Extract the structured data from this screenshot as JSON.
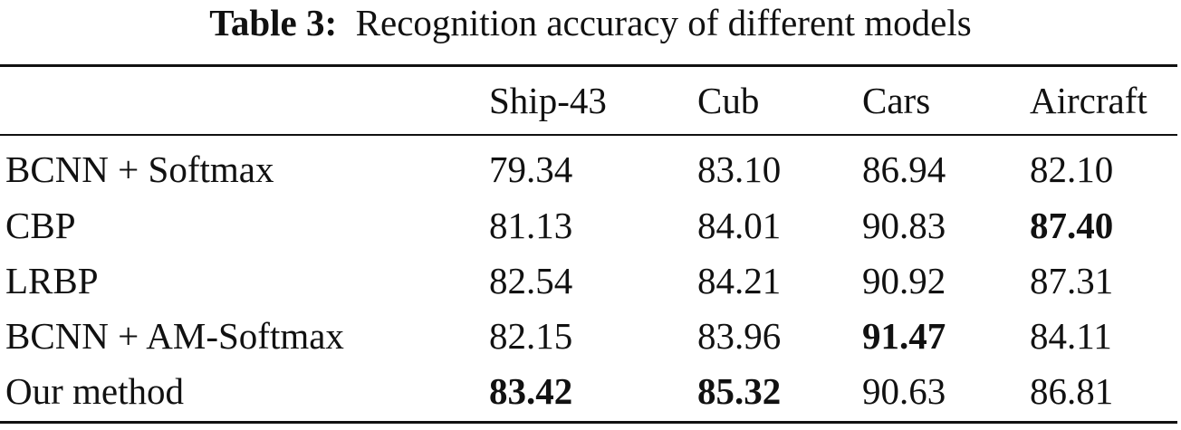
{
  "caption": {
    "label": "Table 3:",
    "text": "Recognition accuracy of different models"
  },
  "table": {
    "columns": [
      "",
      "Ship-43",
      "Cub",
      "Cars",
      "Aircraft"
    ],
    "rows": [
      {
        "model": "BCNN + Softmax",
        "values": [
          "79.34",
          "83.10",
          "86.94",
          "82.10"
        ],
        "bold": [
          false,
          false,
          false,
          false
        ]
      },
      {
        "model": "CBP",
        "values": [
          "81.13",
          "84.01",
          "90.83",
          "87.40"
        ],
        "bold": [
          false,
          false,
          false,
          true
        ]
      },
      {
        "model": "LRBP",
        "values": [
          "82.54",
          "84.21",
          "90.92",
          "87.31"
        ],
        "bold": [
          false,
          false,
          false,
          false
        ]
      },
      {
        "model": "BCNN + AM-Softmax",
        "values": [
          "82.15",
          "83.96",
          "91.47",
          "84.11"
        ],
        "bold": [
          false,
          false,
          true,
          false
        ]
      },
      {
        "model": "Our method",
        "values": [
          "83.42",
          "85.32",
          "90.63",
          "86.81"
        ],
        "bold": [
          true,
          true,
          false,
          false
        ]
      }
    ]
  }
}
